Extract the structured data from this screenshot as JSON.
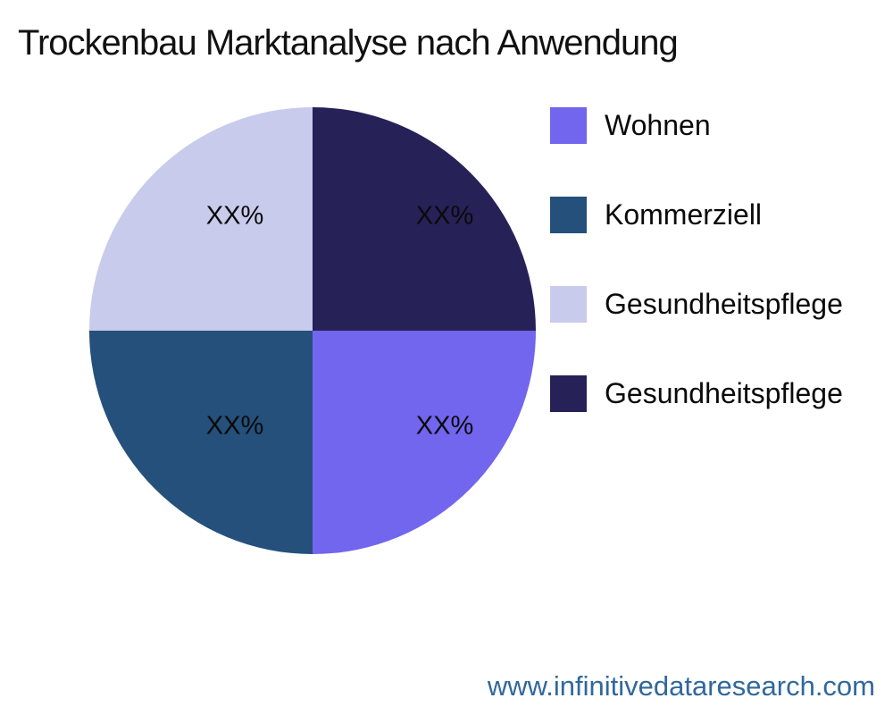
{
  "title": "Trockenbau Marktanalyse nach Anwendung",
  "chart_data": {
    "type": "pie",
    "title": "Trockenbau Marktanalyse nach Anwendung",
    "labels": [
      "Wohnen",
      "Kommerziell",
      "Gesundheitspflege",
      "Gesundheitspflege"
    ],
    "values": [
      25,
      25,
      25,
      25
    ],
    "value_labels": [
      "XX%",
      "XX%",
      "XX%",
      "XX%"
    ],
    "colors": [
      "#7265EE",
      "#24507B",
      "#C8CBEC",
      "#262157"
    ],
    "legend_position": "right",
    "rotation_deg": 90,
    "direction": "clockwise",
    "grid": "off"
  },
  "footer": {
    "url": "www.infinitivedataresearch.com",
    "link_color": "#31689B"
  }
}
